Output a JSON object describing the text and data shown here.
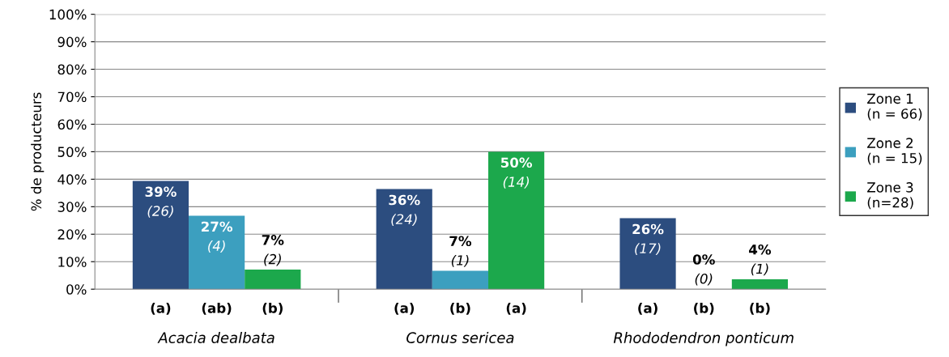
{
  "chart_data": {
    "type": "bar",
    "ylabel": "% de producteurs",
    "categories": [
      "Acacia dealbata",
      "Cornus sericea",
      "Rhododendron ponticum"
    ],
    "series": [
      {
        "name": "Zone 1\n(n = 66)",
        "color": "#2c4d7f",
        "values": [
          39.4,
          36.4,
          25.8
        ],
        "value_labels": [
          "39%\n(26)",
          "36%\n(24)",
          "26%\n(17)"
        ]
      },
      {
        "name": "Zone 2\n(n = 15)",
        "color": "#3c9fbf",
        "values": [
          26.7,
          6.7,
          0
        ],
        "value_labels": [
          "27%\n(4)",
          "7%\n(1)",
          "0%\n(0)"
        ]
      },
      {
        "name": "Zone 3\n(n=28)",
        "color": "#1ca84c",
        "values": [
          7.1,
          50,
          3.6
        ],
        "value_labels": [
          "7%\n(2)",
          "50%\n(14)",
          "4%\n(1)"
        ]
      }
    ],
    "annotations": [
      "(a)",
      "(ab)",
      "(b)",
      "(a)",
      "(b)",
      "(a)",
      "(a)",
      "(b)",
      "(b)"
    ],
    "ylim": [
      0,
      100
    ],
    "yticks": [
      {
        "value": 0,
        "label": "0%"
      },
      {
        "value": 10,
        "label": "10%"
      },
      {
        "value": 20,
        "label": "20%"
      },
      {
        "value": 30,
        "label": "30%"
      },
      {
        "value": 40,
        "label": "40%"
      },
      {
        "value": 50,
        "label": "50%"
      },
      {
        "value": 60,
        "label": "60%"
      },
      {
        "value": 70,
        "label": "70%"
      },
      {
        "value": 80,
        "label": "80%"
      },
      {
        "value": 90,
        "label": "90%"
      },
      {
        "value": 100,
        "label": "100%"
      }
    ],
    "grid": "y",
    "legend": "right"
  }
}
